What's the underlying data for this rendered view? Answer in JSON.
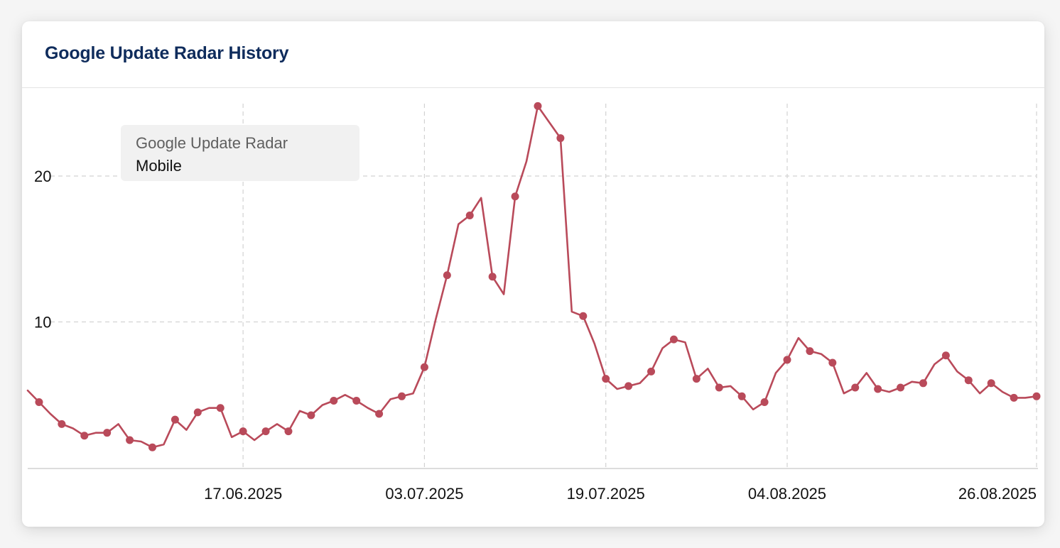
{
  "card": {
    "title": "Google Update Radar History"
  },
  "legend": {
    "title": "Google Update Radar",
    "series_label": "Mobile"
  },
  "colors": {
    "series": "#b94a5a",
    "grid": "#d2d2d2",
    "title": "#0f2c5c"
  },
  "chart_data": {
    "type": "line",
    "title": "Google Update Radar History",
    "ylim": [
      0,
      26
    ],
    "yticks": [
      10,
      20
    ],
    "xlabel": "",
    "ylabel": "",
    "grid": true,
    "legend_position": "top-left",
    "x_tick_labels": [
      "17.06.2025",
      "03.07.2025",
      "19.07.2025",
      "04.08.2025",
      "26.08.2025"
    ],
    "series": [
      {
        "name": "Mobile",
        "markers": "every other point",
        "values": [
          5.3,
          4.5,
          3.7,
          3.0,
          2.7,
          2.2,
          2.4,
          2.4,
          3.0,
          1.9,
          1.8,
          1.4,
          1.6,
          3.3,
          2.6,
          3.8,
          4.1,
          4.1,
          2.1,
          2.5,
          1.9,
          2.5,
          3.0,
          2.5,
          3.9,
          3.6,
          4.3,
          4.6,
          5.0,
          4.6,
          4.1,
          3.7,
          4.7,
          4.9,
          5.1,
          6.9,
          10.2,
          13.2,
          16.7,
          17.3,
          18.5,
          13.1,
          11.9,
          18.6,
          21.0,
          24.8,
          23.7,
          22.6,
          10.7,
          10.4,
          8.5,
          6.1,
          5.4,
          5.6,
          5.8,
          6.6,
          8.2,
          8.8,
          8.6,
          6.1,
          6.8,
          5.5,
          5.6,
          4.9,
          4.0,
          4.5,
          6.5,
          7.4,
          8.9,
          8.0,
          7.8,
          7.2,
          5.1,
          5.5,
          6.5,
          5.4,
          5.2,
          5.5,
          5.9,
          5.8,
          7.1,
          7.7,
          6.6,
          6.0,
          5.1,
          5.8,
          5.2,
          4.8,
          4.8,
          4.9
        ]
      }
    ]
  }
}
